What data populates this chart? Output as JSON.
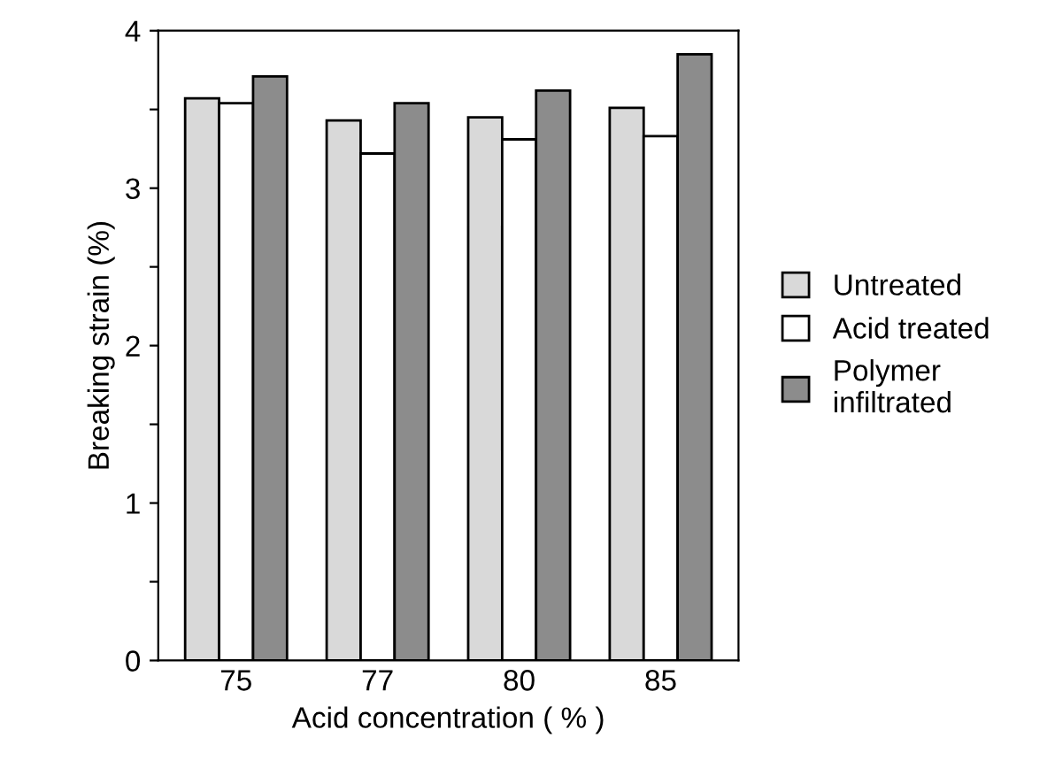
{
  "chart_data": {
    "type": "bar",
    "xlabel": "Acid concentration ( % )",
    "ylabel": "Breaking strain (%)",
    "categories": [
      "75",
      "77",
      "80",
      "85"
    ],
    "series": [
      {
        "name": "Untreated",
        "color": "#d9d9d9",
        "values": [
          3.57,
          3.43,
          3.45,
          3.51
        ]
      },
      {
        "name": "Acid treated",
        "color": "#ffffff",
        "values": [
          3.54,
          3.22,
          3.31,
          3.33
        ]
      },
      {
        "name": "Polymer\ninfiltrated",
        "color": "#8c8c8c",
        "values": [
          3.71,
          3.54,
          3.62,
          3.85
        ]
      }
    ],
    "ylim": [
      0,
      4
    ],
    "yticks": [
      0,
      {
        "value": 0.5,
        "label": null
      },
      1,
      {
        "value": 1.5,
        "label": null
      },
      2,
      {
        "value": 2.5,
        "label": null
      },
      3,
      {
        "value": 3.5,
        "label": null
      },
      4
    ],
    "grid": false,
    "legend": "right"
  }
}
